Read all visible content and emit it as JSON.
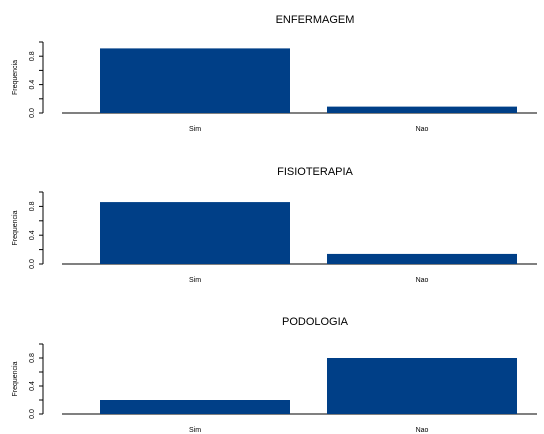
{
  "accent_color": "#003f87",
  "chart_data": [
    {
      "type": "bar",
      "title": "ENFERMAGEM",
      "ylabel": "Frequencia",
      "xlabel": "",
      "categories": [
        "Sim",
        "Nao"
      ],
      "values": [
        0.91,
        0.09
      ],
      "ylim": [
        0,
        1.0
      ],
      "yticks": [
        "0.0",
        "0.4",
        "0.8"
      ],
      "grid": false
    },
    {
      "type": "bar",
      "title": "FISIOTERAPIA",
      "ylabel": "Frequencia",
      "xlabel": "",
      "categories": [
        "Sim",
        "Nao"
      ],
      "values": [
        0.86,
        0.14
      ],
      "ylim": [
        0,
        1.0
      ],
      "yticks": [
        "0.0",
        "0.4",
        "0.8"
      ],
      "grid": false
    },
    {
      "type": "bar",
      "title": "PODOLOGIA",
      "ylabel": "Frequencia",
      "xlabel": "",
      "categories": [
        "Sim",
        "Nao"
      ],
      "values": [
        0.2,
        0.8
      ],
      "ylim": [
        0,
        1.0
      ],
      "yticks": [
        "0.0",
        "0.4",
        "0.8"
      ],
      "grid": false
    }
  ]
}
